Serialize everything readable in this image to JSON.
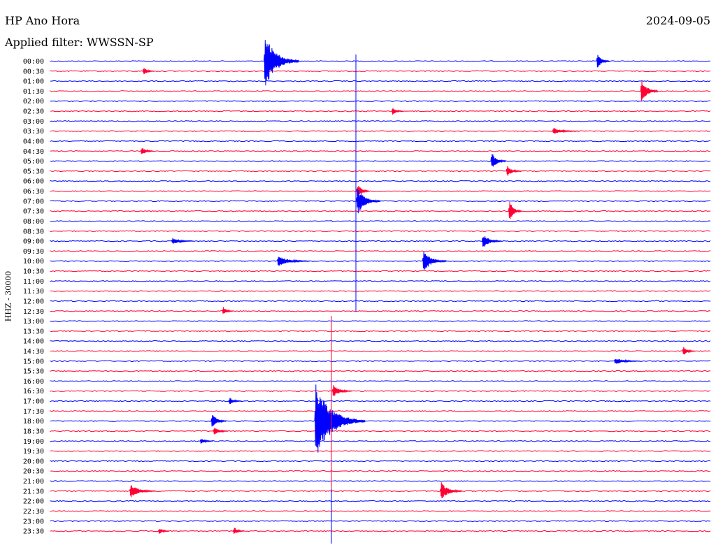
{
  "header": {
    "station": "HP Ano Hora",
    "filter": "Applied filter: WWSSN-SP",
    "date": "2024-09-05"
  },
  "channel_label": "HHZ - 30000",
  "colors": {
    "blue": "#0000ff",
    "red": "#ff0033",
    "text": "#000000"
  },
  "chart_data": {
    "type": "line",
    "title": "",
    "ylabel": "HHZ - 30000",
    "rows": [
      "00:00",
      "00:30",
      "01:00",
      "01:30",
      "02:00",
      "02:30",
      "03:00",
      "03:30",
      "04:00",
      "04:30",
      "05:00",
      "05:30",
      "06:00",
      "06:30",
      "07:00",
      "07:30",
      "08:00",
      "08:30",
      "09:00",
      "09:30",
      "10:00",
      "10:30",
      "11:00",
      "11:30",
      "12:00",
      "12:30",
      "13:00",
      "13:30",
      "14:00",
      "14:30",
      "15:00",
      "15:30",
      "16:00",
      "16:30",
      "17:00",
      "17:30",
      "18:00",
      "18:30",
      "19:00",
      "19:30",
      "20:00",
      "20:30",
      "21:00",
      "21:30",
      "22:00",
      "22:30",
      "23:00",
      "23:30"
    ],
    "row_colors": [
      "blue",
      "red"
    ],
    "row_minutes": 30,
    "events": [
      {
        "row": 0,
        "minute": 9.7,
        "amp": 3.0,
        "dur": 1.6
      },
      {
        "row": 0,
        "minute": 24.8,
        "amp": 1.0,
        "dur": 0.6
      },
      {
        "row": 1,
        "minute": 4.2,
        "amp": 0.6,
        "dur": 0.5
      },
      {
        "row": 3,
        "minute": 26.8,
        "amp": 1.6,
        "dur": 0.8
      },
      {
        "row": 5,
        "minute": 15.5,
        "amp": 0.6,
        "dur": 0.5
      },
      {
        "row": 7,
        "minute": 22.8,
        "amp": 0.4,
        "dur": 1.2
      },
      {
        "row": 9,
        "minute": 4.1,
        "amp": 0.6,
        "dur": 0.6
      },
      {
        "row": 10,
        "minute": 20.0,
        "amp": 1.1,
        "dur": 0.7
      },
      {
        "row": 11,
        "minute": 20.7,
        "amp": 0.7,
        "dur": 0.7
      },
      {
        "row": 13,
        "minute": 13.9,
        "amp": 1.0,
        "dur": 0.6
      },
      {
        "row": 14,
        "minute": 13.9,
        "amp": 1.6,
        "dur": 1.1
      },
      {
        "row": 15,
        "minute": 20.8,
        "amp": 1.4,
        "dur": 0.6
      },
      {
        "row": 18,
        "minute": 5.5,
        "amp": 0.4,
        "dur": 1.0
      },
      {
        "row": 18,
        "minute": 19.6,
        "amp": 0.9,
        "dur": 0.9
      },
      {
        "row": 20,
        "minute": 10.3,
        "amp": 0.6,
        "dur": 1.5
      },
      {
        "row": 20,
        "minute": 16.9,
        "amp": 1.3,
        "dur": 1.1
      },
      {
        "row": 25,
        "minute": 7.8,
        "amp": 0.6,
        "dur": 0.5
      },
      {
        "row": 29,
        "minute": 28.7,
        "amp": 0.6,
        "dur": 0.6
      },
      {
        "row": 30,
        "minute": 25.6,
        "amp": 0.4,
        "dur": 1.2
      },
      {
        "row": 33,
        "minute": 12.8,
        "amp": 0.8,
        "dur": 0.9
      },
      {
        "row": 34,
        "minute": 8.1,
        "amp": 0.5,
        "dur": 0.6
      },
      {
        "row": 36,
        "minute": 7.3,
        "amp": 1.0,
        "dur": 0.7
      },
      {
        "row": 37,
        "minute": 7.4,
        "amp": 0.6,
        "dur": 0.7
      },
      {
        "row": 38,
        "minute": 6.8,
        "amp": 0.4,
        "dur": 0.6
      },
      {
        "row": 36,
        "minute": 12.0,
        "amp": 4.0,
        "dur": 2.3
      },
      {
        "row": 43,
        "minute": 3.6,
        "amp": 0.8,
        "dur": 1.2
      },
      {
        "row": 43,
        "minute": 17.7,
        "amp": 1.1,
        "dur": 1.0
      },
      {
        "row": 47,
        "minute": 4.9,
        "amp": 0.5,
        "dur": 0.5
      },
      {
        "row": 47,
        "minute": 8.3,
        "amp": 0.6,
        "dur": 0.5
      }
    ],
    "grid": false
  }
}
